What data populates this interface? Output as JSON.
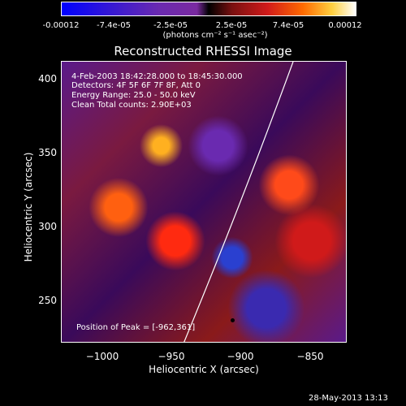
{
  "colorbar": {
    "ticks": [
      "-0.00012",
      "-7.4e-05",
      "-2.5e-05",
      "2.5e-05",
      "7.4e-05",
      "0.00012"
    ],
    "units": "(photons cm⁻² s⁻¹ asec⁻²)"
  },
  "title": "Reconstructed RHESSI Image",
  "annotations": [
    "4-Feb-2003 18:42:28.000 to 18:45:30.000",
    "Detectors: 4F 5F 6F 7F 8F, Att 0",
    "Energy Range: 25.0 - 50.0 keV",
    "Clean     Total counts: 2.90E+03"
  ],
  "peak": "Position of Peak = [-962,361]",
  "xaxis": {
    "label": "Heliocentric X (arcsec)",
    "ticks": [
      "−1000",
      "−950",
      "−900",
      "−850"
    ]
  },
  "yaxis": {
    "label": "Heliocentric Y (arcsec)",
    "ticks": [
      "400",
      "350",
      "300",
      "250"
    ]
  },
  "footer": "28-May-2013 13:13"
}
